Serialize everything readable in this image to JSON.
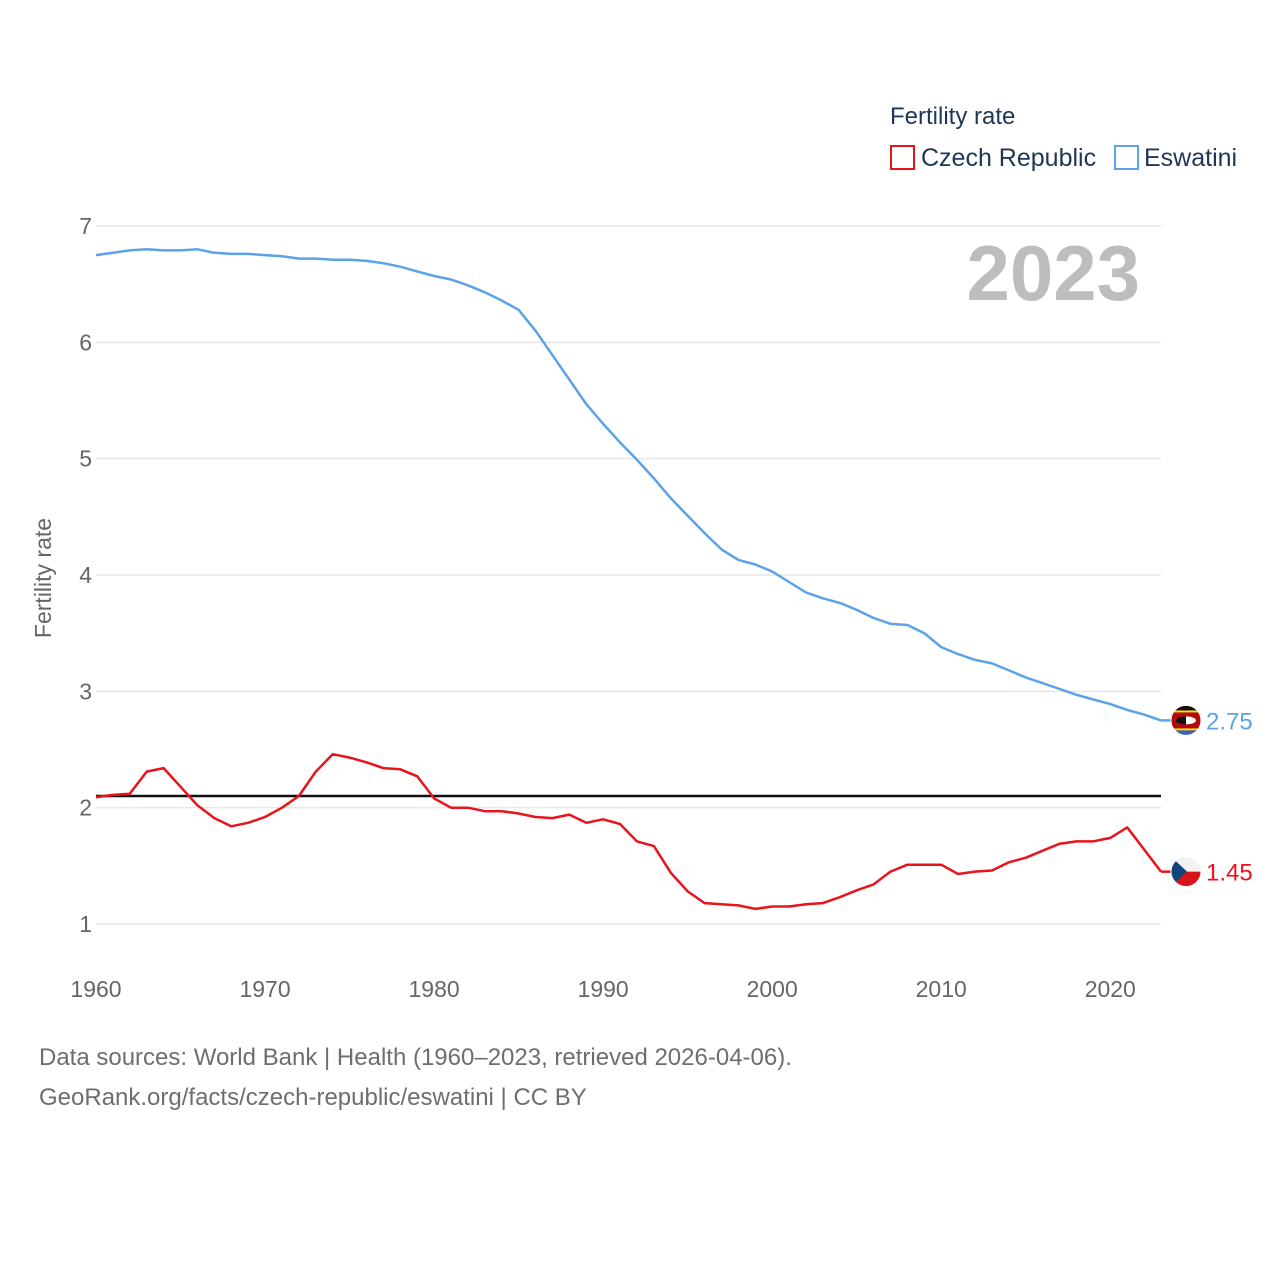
{
  "chart_data": {
    "type": "line",
    "legend_title": "Fertility rate",
    "ylabel": "Fertility rate",
    "year_label": "2023",
    "ylim": [
      1,
      7
    ],
    "xlim": [
      1960,
      2023
    ],
    "yticks": [
      "1",
      "2",
      "3",
      "4",
      "5",
      "6",
      "7"
    ],
    "xticks": [
      "1960",
      "1970",
      "1980",
      "1990",
      "2000",
      "2010",
      "2020"
    ],
    "reference_line": 2.1,
    "x": [
      1960,
      1961,
      1962,
      1963,
      1964,
      1965,
      1966,
      1967,
      1968,
      1969,
      1970,
      1971,
      1972,
      1973,
      1974,
      1975,
      1976,
      1977,
      1978,
      1979,
      1980,
      1981,
      1982,
      1983,
      1984,
      1985,
      1986,
      1987,
      1988,
      1989,
      1990,
      1991,
      1992,
      1993,
      1994,
      1995,
      1996,
      1997,
      1998,
      1999,
      2000,
      2001,
      2002,
      2003,
      2004,
      2005,
      2006,
      2007,
      2008,
      2009,
      2010,
      2011,
      2012,
      2013,
      2014,
      2015,
      2016,
      2017,
      2018,
      2019,
      2020,
      2021,
      2022,
      2023
    ],
    "series": [
      {
        "name": "Czech Republic",
        "color": "#e8141c",
        "end_label": "1.45",
        "values": [
          2.09,
          2.11,
          2.12,
          2.31,
          2.34,
          2.18,
          2.02,
          1.91,
          1.84,
          1.87,
          1.92,
          2.0,
          2.1,
          2.31,
          2.46,
          2.43,
          2.39,
          2.34,
          2.33,
          2.27,
          2.08,
          2.0,
          2.0,
          1.97,
          1.97,
          1.95,
          1.92,
          1.91,
          1.94,
          1.87,
          1.9,
          1.86,
          1.71,
          1.67,
          1.44,
          1.28,
          1.18,
          1.17,
          1.16,
          1.13,
          1.15,
          1.15,
          1.17,
          1.18,
          1.23,
          1.29,
          1.34,
          1.45,
          1.51,
          1.51,
          1.51,
          1.43,
          1.45,
          1.46,
          1.53,
          1.57,
          1.63,
          1.69,
          1.71,
          1.71,
          1.74,
          1.83,
          1.64,
          1.45
        ]
      },
      {
        "name": "Eswatini",
        "color": "#5ba3e6",
        "end_label": "2.75",
        "values": [
          6.75,
          6.77,
          6.79,
          6.8,
          6.79,
          6.79,
          6.8,
          6.77,
          6.76,
          6.76,
          6.75,
          6.74,
          6.72,
          6.72,
          6.71,
          6.71,
          6.7,
          6.68,
          6.65,
          6.61,
          6.57,
          6.54,
          6.49,
          6.43,
          6.36,
          6.28,
          6.1,
          5.89,
          5.68,
          5.47,
          5.3,
          5.14,
          4.99,
          4.83,
          4.66,
          4.51,
          4.36,
          4.22,
          4.13,
          4.09,
          4.03,
          3.94,
          3.85,
          3.8,
          3.76,
          3.7,
          3.63,
          3.58,
          3.57,
          3.5,
          3.38,
          3.32,
          3.27,
          3.24,
          3.18,
          3.12,
          3.07,
          3.02,
          2.97,
          2.93,
          2.89,
          2.84,
          2.8,
          2.75
        ]
      }
    ]
  },
  "footer": {
    "line1": "Data sources: World Bank | Health (1960–2023, retrieved 2026-04-06).",
    "line2": "GeoRank.org/facts/czech-republic/eswatini | CC BY"
  }
}
